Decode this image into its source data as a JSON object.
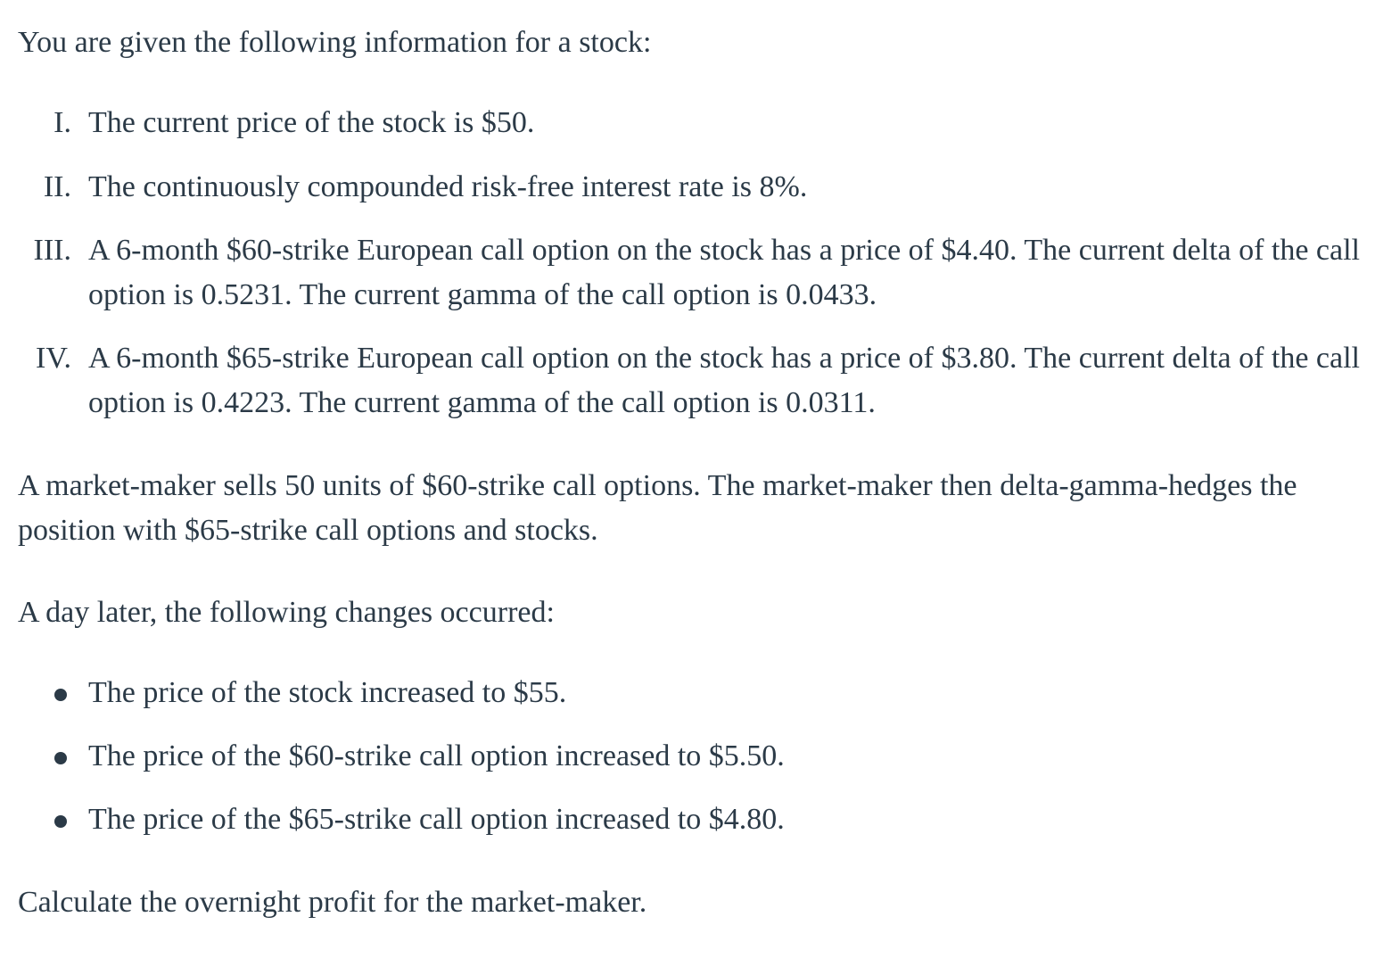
{
  "intro": "You are given the following information for a stock:",
  "given": [
    {
      "num": "I.",
      "text": "The current price of the stock is $50."
    },
    {
      "num": "II.",
      "text": "The continuously compounded risk-free interest rate is 8%."
    },
    {
      "num": "III.",
      "text": "A 6-month $60-strike European call option on the stock has a price of $4.40. The current delta of the call option is 0.5231. The current gamma of the call option is 0.0433."
    },
    {
      "num": "IV.",
      "text": "A 6-month $65-strike European call option on the stock has a price of $3.80. The current delta of the call option is 0.4223. The current gamma of the call option is 0.0311."
    }
  ],
  "market_maker": "A market-maker sells 50 units of $60-strike call options. The market-maker then delta-gamma-hedges the position with $65-strike call options and stocks.",
  "day_later": "A day later, the following changes occurred:",
  "changes": [
    "The price of the stock increased to $55.",
    "The price of the $60-strike call option increased to $5.50.",
    "The price of the $65-strike call option increased to $4.80."
  ],
  "question": "Calculate the overnight profit for the market-maker."
}
